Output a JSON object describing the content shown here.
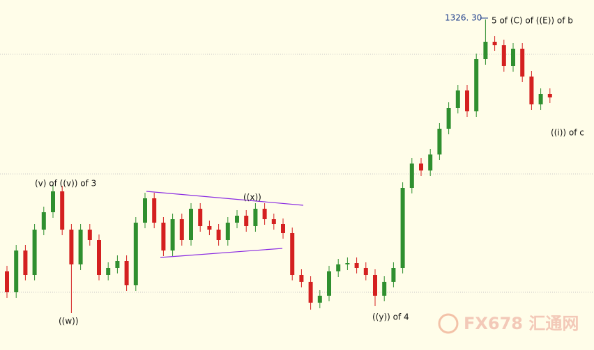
{
  "chart_data": {
    "type": "candlestick",
    "ylim": [
      1278.8,
      1329.1
    ],
    "up_color": "#2f8f2f",
    "down_color": "#d42020",
    "open": [
      1290.1,
      1287.1,
      1293.1,
      1289.6,
      1296.1,
      1298.6,
      1301.6,
      1296.1,
      1291.1,
      1296.1,
      1294.6,
      1289.6,
      1290.6,
      1291.6,
      1288.1,
      1297.1,
      1300.6,
      1297.1,
      1293.1,
      1297.6,
      1294.6,
      1299.1,
      1296.6,
      1296.1,
      1294.6,
      1297.1,
      1298.1,
      1296.6,
      1299.1,
      1297.6,
      1296.9,
      1295.6,
      1289.6,
      1288.6,
      1285.6,
      1286.6,
      1290.1,
      1291.1,
      1291.3,
      1290.6,
      1289.6,
      1286.6,
      1288.6,
      1290.6,
      1302.1,
      1305.6,
      1304.6,
      1306.9,
      1310.6,
      1313.6,
      1316.1,
      1313.1,
      1320.6,
      1323.1,
      1322.6,
      1319.6,
      1322.1,
      1318.1,
      1314.1,
      1315.6
    ],
    "high": [
      1290.9,
      1293.9,
      1293.9,
      1296.9,
      1299.4,
      1302.6,
      1302.4,
      1296.9,
      1296.9,
      1296.9,
      1295.4,
      1291.4,
      1292.4,
      1292.4,
      1297.9,
      1301.4,
      1301.4,
      1297.9,
      1298.4,
      1298.4,
      1299.9,
      1299.9,
      1297.4,
      1296.9,
      1297.9,
      1298.9,
      1298.9,
      1299.9,
      1299.9,
      1298.4,
      1297.7,
      1296.4,
      1290.4,
      1289.4,
      1287.4,
      1290.9,
      1291.9,
      1292.1,
      1292.1,
      1291.4,
      1290.4,
      1289.4,
      1291.4,
      1302.9,
      1306.4,
      1306.4,
      1307.7,
      1311.4,
      1314.4,
      1316.9,
      1316.9,
      1321.4,
      1326.3,
      1323.9,
      1323.4,
      1322.9,
      1322.9,
      1318.9,
      1316.4,
      1316.4
    ],
    "low": [
      1286.3,
      1286.3,
      1288.8,
      1288.8,
      1295.3,
      1297.8,
      1295.3,
      1284.1,
      1290.3,
      1293.8,
      1288.8,
      1288.8,
      1289.8,
      1287.3,
      1287.3,
      1296.3,
      1296.3,
      1292.3,
      1292.3,
      1293.8,
      1293.8,
      1295.8,
      1295.3,
      1293.8,
      1293.8,
      1296.3,
      1295.8,
      1295.8,
      1296.8,
      1296.1,
      1294.8,
      1288.8,
      1287.8,
      1284.6,
      1284.8,
      1285.8,
      1289.3,
      1290.3,
      1289.8,
      1288.8,
      1285.1,
      1285.8,
      1287.8,
      1289.8,
      1301.3,
      1303.8,
      1303.8,
      1306.1,
      1309.8,
      1312.8,
      1312.3,
      1312.3,
      1319.8,
      1321.8,
      1318.8,
      1318.8,
      1317.3,
      1313.3,
      1313.3,
      1314.3
    ],
    "close": [
      1287.1,
      1293.1,
      1289.6,
      1296.1,
      1298.6,
      1301.6,
      1296.1,
      1291.1,
      1296.1,
      1294.6,
      1289.6,
      1290.6,
      1291.6,
      1288.1,
      1297.1,
      1300.6,
      1297.1,
      1293.1,
      1297.6,
      1294.6,
      1299.1,
      1296.6,
      1296.1,
      1294.6,
      1297.1,
      1298.1,
      1296.6,
      1299.1,
      1297.6,
      1296.9,
      1295.6,
      1289.6,
      1288.6,
      1285.6,
      1286.6,
      1290.1,
      1291.1,
      1291.3,
      1290.6,
      1289.6,
      1286.6,
      1288.6,
      1290.6,
      1302.1,
      1305.6,
      1304.6,
      1306.9,
      1310.6,
      1313.6,
      1316.1,
      1313.1,
      1320.6,
      1323.1,
      1322.6,
      1319.6,
      1322.1,
      1318.1,
      1314.1,
      1315.6,
      1315.1
    ],
    "annotations": [
      "(v) of ((v)) of 3",
      "((w))",
      "((x))",
      "((y)) of 4",
      "5 of (C) of ((E)) of b",
      "((i)) of c",
      "1326. 30"
    ],
    "watermark": "FX678 汇通网"
  }
}
